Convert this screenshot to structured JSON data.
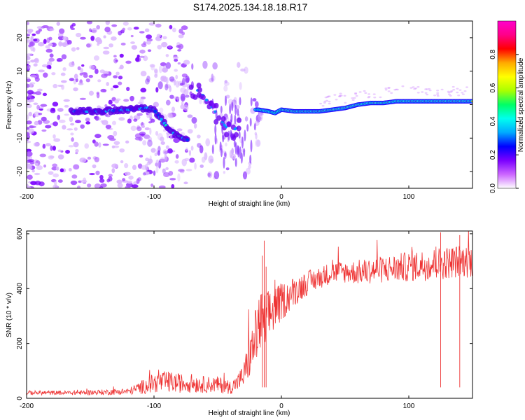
{
  "figure": {
    "title": "S174.2025.134.18.18.R17"
  },
  "chart_data": [
    {
      "type": "heatmap",
      "name": "spectrogram",
      "xlabel": "Height of straight line (km)",
      "ylabel": "Frequency (Hz)",
      "xlim": [
        -200,
        150
      ],
      "ylim": [
        -25,
        25
      ],
      "xticks": [
        -200,
        -100,
        0,
        100
      ],
      "yticks": [
        -20,
        -10,
        0,
        10,
        20
      ],
      "colorbar": {
        "label": "Normalized spectral amplitude",
        "range": [
          0,
          1
        ],
        "ticks": [
          "0.0",
          "0.2",
          "0.4",
          "0.6",
          "0.8"
        ],
        "colors": [
          "#ffffff",
          "#cc66ff",
          "#7a00ff",
          "#0000ff",
          "#00aaff",
          "#00ffee",
          "#00ff66",
          "#aaff00",
          "#ffff00",
          "#ffaa00",
          "#ff0000",
          "#ff0088",
          "#ff00cc"
        ]
      },
      "ridge": {
        "x": [
          -160,
          -140,
          -120,
          -105,
          -100,
          -95,
          -90,
          -85,
          -80,
          -75
        ],
        "y": [
          -2,
          -2,
          -1.5,
          -1,
          -1.5,
          -4,
          -6.5,
          -8.5,
          -9.5,
          -10.5
        ]
      },
      "branch": {
        "x": [
          -68,
          -62,
          -56,
          -50,
          -45,
          -40,
          -35
        ],
        "y": [
          5,
          3,
          0,
          -3,
          -6,
          -8,
          -7
        ]
      },
      "carrier": {
        "x": [
          -18,
          -10,
          -5,
          0,
          10,
          20,
          30,
          40,
          50,
          60,
          70,
          80,
          90,
          100,
          120,
          150
        ],
        "y": [
          -1.5,
          -2,
          -2.5,
          -1.5,
          -2,
          -2,
          -2,
          -1.5,
          -1,
          0,
          0.5,
          0.5,
          1,
          1,
          1,
          1
        ]
      }
    },
    {
      "type": "line",
      "name": "snr",
      "xlabel": "Height of straight line (km)",
      "ylabel": "SNR (10 * v/v)",
      "xlim": [
        -200,
        150
      ],
      "ylim": [
        0,
        610
      ],
      "xticks": [
        -200,
        -100,
        0,
        100
      ],
      "yticks": [
        0,
        200,
        400,
        600
      ],
      "series": [
        {
          "name": "SNR envelope",
          "color": "#ee3333",
          "x": [
            -200,
            -180,
            -160,
            -140,
            -120,
            -110,
            -100,
            -90,
            -80,
            -70,
            -60,
            -50,
            -40,
            -35,
            -30,
            -25,
            -22,
            -20,
            -18,
            -15,
            -12,
            -10,
            -5,
            0,
            5,
            10,
            20,
            30,
            40,
            50,
            60,
            80,
            100,
            120,
            140,
            150
          ],
          "y": [
            20,
            20,
            20,
            22,
            25,
            40,
            55,
            60,
            55,
            55,
            50,
            50,
            40,
            55,
            80,
            150,
            190,
            230,
            260,
            280,
            270,
            300,
            330,
            350,
            370,
            390,
            420,
            440,
            460,
            460,
            460,
            470,
            480,
            490,
            500,
            500
          ],
          "noise": [
            8,
            8,
            8,
            10,
            12,
            25,
            35,
            40,
            35,
            35,
            30,
            30,
            25,
            30,
            45,
            80,
            90,
            110,
            120,
            120,
            110,
            100,
            80,
            70,
            60,
            55,
            45,
            40,
            40,
            40,
            45,
            50,
            55,
            60,
            60,
            60
          ]
        }
      ]
    }
  ]
}
